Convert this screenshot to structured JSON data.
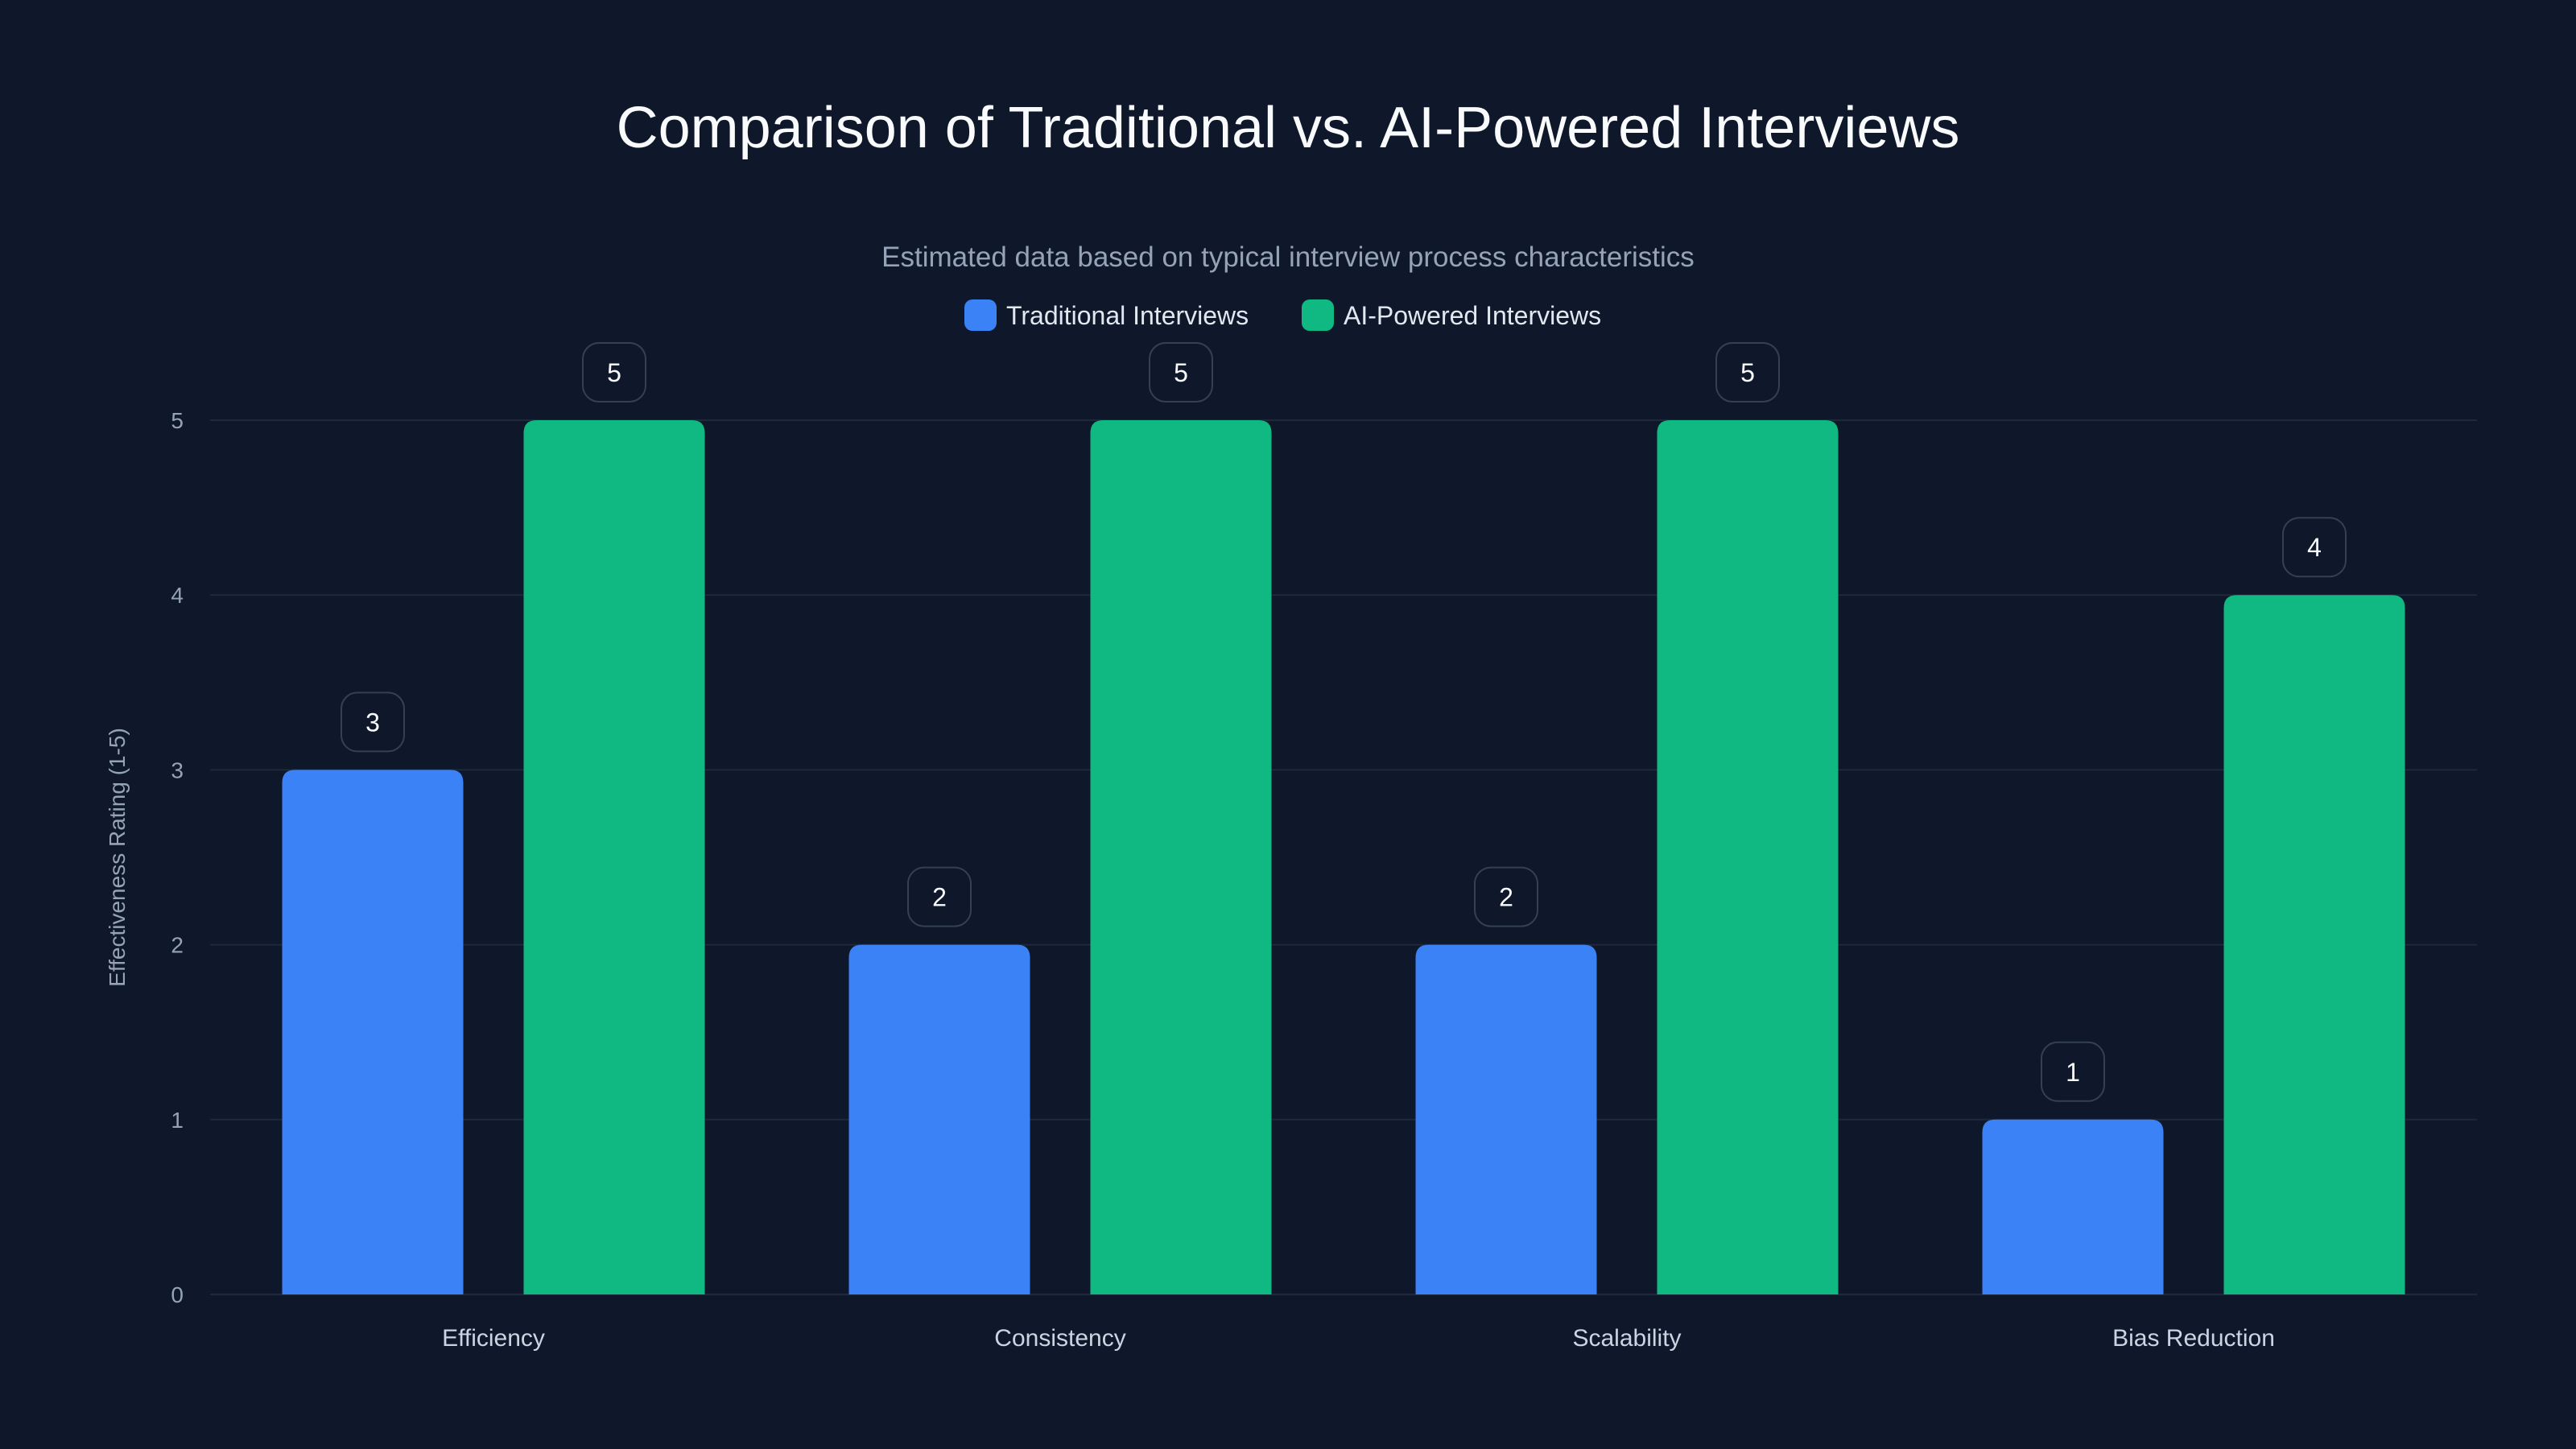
{
  "chart_data": {
    "type": "bar",
    "title": "Comparison of Traditional vs. AI-Powered Interviews",
    "subtitle": "Estimated data based on typical interview process characteristics",
    "xlabel": "",
    "ylabel": "Effectiveness Rating (1-5)",
    "ylim": [
      0,
      5
    ],
    "yticks": [
      0,
      1,
      2,
      3,
      4,
      5
    ],
    "grid": true,
    "legend_position": "top-center",
    "categories": [
      "Efficiency",
      "Consistency",
      "Scalability",
      "Bias Reduction"
    ],
    "series": [
      {
        "name": "Traditional Interviews",
        "color": "#3b82f6",
        "values": [
          3,
          2,
          2,
          1
        ]
      },
      {
        "name": "AI-Powered Interviews",
        "color": "#10b981",
        "values": [
          5,
          5,
          5,
          4
        ]
      }
    ]
  },
  "colors": {
    "background": "#0f172a",
    "grid": "#1e293b",
    "text": "#f8fafc",
    "muted": "#94a3b8"
  }
}
